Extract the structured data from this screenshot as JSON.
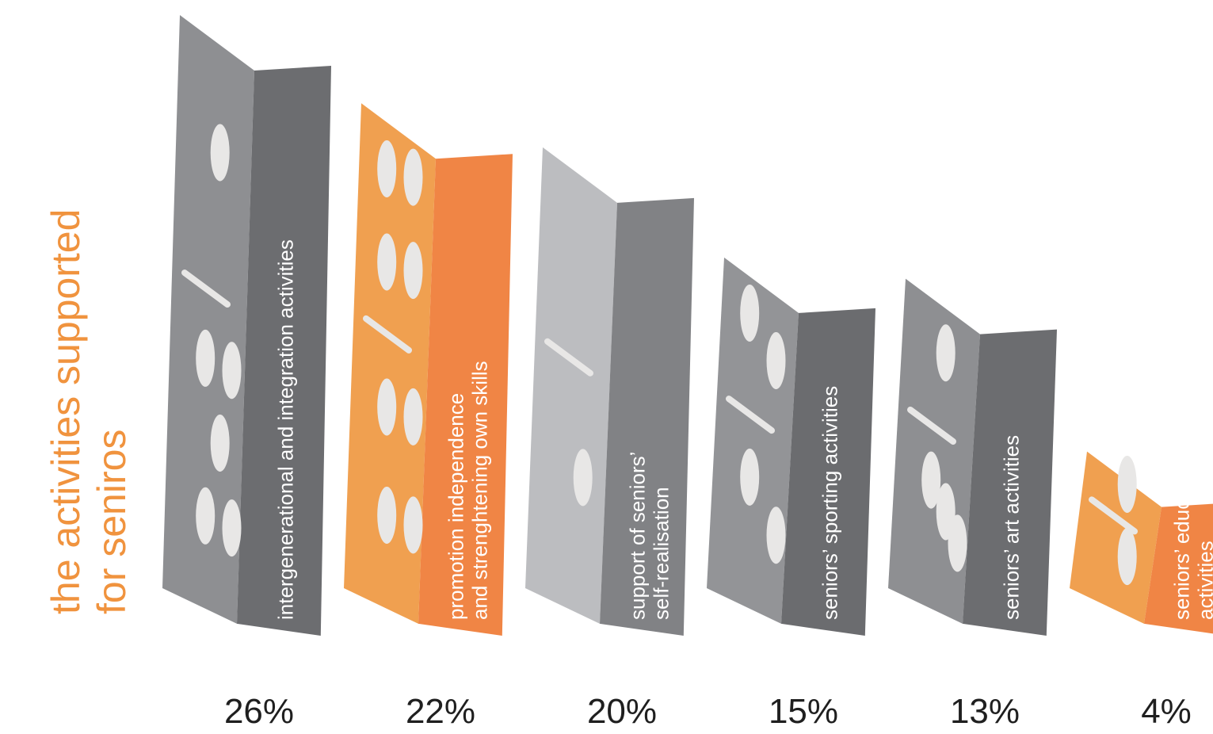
{
  "chart_data": {
    "type": "bar",
    "title": [
      "the activities supported",
      "for seniros"
    ],
    "unit": "%",
    "categories": [
      [
        "intergenerational and integration activities"
      ],
      [
        "promotion independence",
        "and strenghtening own skills"
      ],
      [
        "support of seniors’",
        "self-realisation"
      ],
      [
        "seniors’ sporting activities"
      ],
      [
        "seniors’ art activities"
      ],
      [
        "seniors’ educational",
        "activities"
      ]
    ],
    "values": [
      26,
      22,
      20,
      15,
      13,
      4
    ],
    "value_labels": [
      "26%",
      "22%",
      "20%",
      "15%",
      "13%",
      "4%"
    ],
    "pips": [
      [
        1,
        5
      ],
      [
        4,
        4
      ],
      [
        0,
        1
      ],
      [
        2,
        2
      ],
      [
        1,
        3
      ],
      [
        1,
        1
      ]
    ],
    "colors": {
      "title": "#f0933e",
      "text": "#1f1f1f",
      "pip": "#e8e7e6",
      "grey_front": "#8e8f92",
      "grey_side": "#6c6d70",
      "grey_top": "#7c7d80",
      "light_front": "#bcbdc0",
      "light_side": "#818285",
      "light_top": "#a0a1a4",
      "dark_front": "#939497",
      "dark_side": "#6b6c6f",
      "dark_top": "#58595c",
      "orange_front": "#f0a050",
      "orange_side": "#f08545",
      "orange_top": "#f09040"
    },
    "bar_styles": [
      "grey",
      "orange",
      "light",
      "dark",
      "grey",
      "orange"
    ]
  }
}
